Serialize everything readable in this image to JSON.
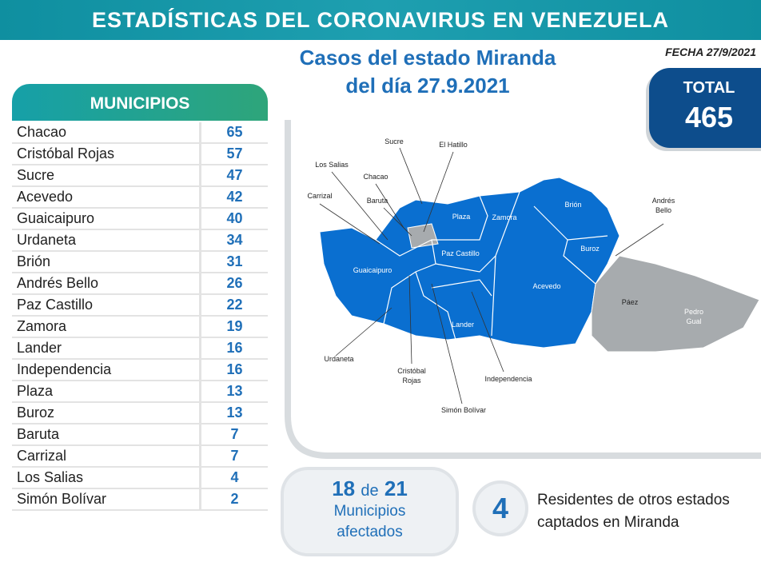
{
  "header": {
    "title": "ESTADÍSTICAS DEL CORONAVIRUS EN VENEZUELA"
  },
  "subtitle": [
    "Casos del estado Miranda",
    "del día 27.9.2021"
  ],
  "date": "FECHA 27/9/2021",
  "total": {
    "label": "TOTAL",
    "value": 465
  },
  "table": {
    "header": "MUNICIPIOS",
    "rows": [
      [
        "Chacao",
        65
      ],
      [
        "Cristóbal Rojas",
        57
      ],
      [
        "Sucre",
        47
      ],
      [
        "Acevedo",
        42
      ],
      [
        "Guaicaipuro",
        40
      ],
      [
        "Urdaneta",
        34
      ],
      [
        "Brión",
        31
      ],
      [
        "Andrés Bello",
        26
      ],
      [
        "Paz Castillo",
        22
      ],
      [
        "Zamora",
        19
      ],
      [
        "Lander",
        16
      ],
      [
        "Independencia",
        16
      ],
      [
        "Plaza",
        13
      ],
      [
        "Buroz",
        13
      ],
      [
        "Baruta",
        7
      ],
      [
        "Carrizal",
        7
      ],
      [
        "Los Salias",
        4
      ],
      [
        "Simón Bolívar",
        2
      ]
    ]
  },
  "map": {
    "labels": [
      [
        "Sucre"
      ],
      [
        "El Hatillo"
      ],
      [
        "Los Salias"
      ],
      [
        "Chacao"
      ],
      [
        "Carrizal"
      ],
      [
        "Baruta"
      ],
      [
        "Plaza"
      ],
      [
        "Zamora"
      ],
      [
        "Brión"
      ],
      [
        "Andrés",
        "Bello"
      ],
      [
        "Buroz"
      ],
      [
        "Paz Castillo"
      ],
      [
        "Guaicaipuro"
      ],
      [
        "Acevedo"
      ],
      [
        "Páez"
      ],
      [
        "Pedro",
        "Gual"
      ],
      [
        "Lander"
      ],
      [
        "Urdaneta"
      ],
      [
        "Cristóbal",
        "Rojas"
      ],
      [
        "Independencia"
      ],
      [
        "Simón Bolívar"
      ]
    ]
  },
  "affected": {
    "count": 18,
    "of": "de",
    "total": 21,
    "label": [
      "Municipios",
      "afectados"
    ]
  },
  "residents": {
    "count": 4,
    "text": [
      "Residentes de otros estados",
      "captados en Miranda"
    ]
  }
}
